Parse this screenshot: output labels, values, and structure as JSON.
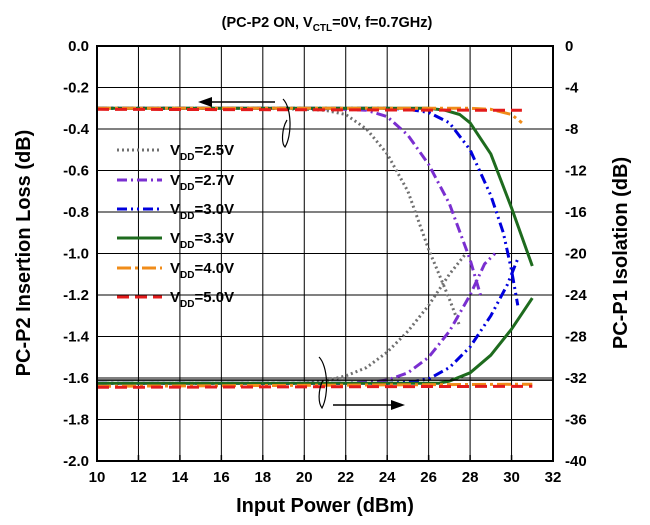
{
  "chart_data": {
    "type": "line",
    "title": {
      "open": "(PC-P2 ON, V",
      "sub": "CTL",
      "close": "=0V, f=0.7GHz)"
    },
    "xlabel": "Input Power  (dBm)",
    "ylabel_left": "PC-P2 Insertion Loss  (dB)",
    "ylabel_right": "PC-P1 Isolation  (dB)",
    "xlim": [
      10,
      32
    ],
    "ylim_left": [
      -2.0,
      0.0
    ],
    "ylim_right": [
      -40,
      0
    ],
    "x_ticks": [
      "10",
      "12",
      "14",
      "16",
      "18",
      "20",
      "22",
      "24",
      "26",
      "28",
      "30",
      "32"
    ],
    "y_left_ticks": [
      "0.0",
      "-0.2",
      "-0.4",
      "-0.6",
      "-0.8",
      "-1.0",
      "-1.2",
      "-1.4",
      "-1.6",
      "-1.8",
      "-2.0"
    ],
    "y_right_ticks": [
      "0",
      "-4",
      "-8",
      "-12",
      "-16",
      "-20",
      "-24",
      "-28",
      "-32",
      "-36",
      "-40"
    ],
    "grid": true,
    "legend_position": "left",
    "series": [
      {
        "name": "V_DD=2.5V",
        "label_main": "V",
        "label_sub": "DD",
        "label_value": "=2.5V",
        "color": "#707070",
        "dash": "2,3",
        "width": 3,
        "insertion_loss": [
          [
            10,
            -0.3
          ],
          [
            18,
            -0.3
          ],
          [
            20,
            -0.305
          ],
          [
            21,
            -0.31
          ],
          [
            22,
            -0.33
          ],
          [
            23,
            -0.4
          ],
          [
            24,
            -0.52
          ],
          [
            25,
            -0.7
          ],
          [
            26,
            -0.98
          ],
          [
            27,
            -1.22
          ],
          [
            27.5,
            -1.35
          ]
        ],
        "isolation": [
          [
            10,
            -32.5
          ],
          [
            20,
            -32.5
          ],
          [
            21,
            -32.3
          ],
          [
            22,
            -31.8
          ],
          [
            23,
            -31
          ],
          [
            24,
            -29.5
          ],
          [
            25,
            -27.5
          ],
          [
            26,
            -25
          ],
          [
            27,
            -22
          ],
          [
            27.8,
            -20
          ]
        ]
      },
      {
        "name": "V_DD=2.7V",
        "label_main": "V",
        "label_sub": "DD",
        "label_value": "=2.7V",
        "color": "#7a2fd0",
        "dash": "10,4,2,4",
        "width": 3,
        "insertion_loss": [
          [
            10,
            -0.3
          ],
          [
            20,
            -0.3
          ],
          [
            22,
            -0.305
          ],
          [
            23,
            -0.31
          ],
          [
            24,
            -0.34
          ],
          [
            25,
            -0.43
          ],
          [
            26,
            -0.57
          ],
          [
            27,
            -0.76
          ],
          [
            28,
            -1.03
          ],
          [
            28.5,
            -1.2
          ]
        ],
        "isolation": [
          [
            10,
            -32.5
          ],
          [
            22,
            -32.5
          ],
          [
            23,
            -32.4
          ],
          [
            24,
            -32.2
          ],
          [
            25,
            -31.5
          ],
          [
            26,
            -30
          ],
          [
            27,
            -27.5
          ],
          [
            28,
            -24
          ],
          [
            28.7,
            -21
          ],
          [
            29.2,
            -20
          ]
        ]
      },
      {
        "name": "V_DD=3.0V",
        "label_main": "V",
        "label_sub": "DD",
        "label_value": "=3.0V",
        "color": "#0000dd",
        "dash": "10,4,2,4,2,4",
        "width": 3,
        "insertion_loss": [
          [
            10,
            -0.3
          ],
          [
            24,
            -0.3
          ],
          [
            25,
            -0.305
          ],
          [
            26,
            -0.32
          ],
          [
            27,
            -0.37
          ],
          [
            28,
            -0.5
          ],
          [
            29,
            -0.72
          ],
          [
            29.6,
            -0.9
          ],
          [
            30,
            -1.08
          ],
          [
            30.3,
            -1.25
          ]
        ],
        "isolation": [
          [
            10,
            -32.5
          ],
          [
            24,
            -32.5
          ],
          [
            25,
            -32.4
          ],
          [
            26,
            -32.1
          ],
          [
            27,
            -31
          ],
          [
            28,
            -29
          ],
          [
            29,
            -26
          ],
          [
            29.8,
            -23
          ],
          [
            30.3,
            -20.5
          ]
        ]
      },
      {
        "name": "V_DD=3.3V",
        "label_main": "V",
        "label_sub": "DD",
        "label_value": "=3.3V",
        "color": "#1e6b1e",
        "dash": "",
        "width": 3,
        "insertion_loss": [
          [
            10,
            -0.3
          ],
          [
            26,
            -0.3
          ],
          [
            26.8,
            -0.31
          ],
          [
            27.5,
            -0.33
          ],
          [
            28,
            -0.37
          ],
          [
            29,
            -0.52
          ],
          [
            30,
            -0.78
          ],
          [
            30.5,
            -0.92
          ],
          [
            31,
            -1.06
          ]
        ],
        "isolation": [
          [
            10,
            -32.5
          ],
          [
            26.5,
            -32.5
          ],
          [
            27,
            -32.3
          ],
          [
            28,
            -31.5
          ],
          [
            29,
            -29.8
          ],
          [
            30,
            -27.3
          ],
          [
            30.5,
            -25.8
          ],
          [
            31,
            -24.3
          ]
        ]
      },
      {
        "name": "V_DD=4.0V",
        "label_main": "V",
        "label_sub": "DD",
        "label_value": "=4.0V",
        "color": "#f08c1a",
        "dash": "14,4,3,4",
        "width": 3,
        "insertion_loss": [
          [
            10,
            -0.3
          ],
          [
            28,
            -0.3
          ],
          [
            29,
            -0.305
          ],
          [
            30,
            -0.33
          ],
          [
            30.5,
            -0.37
          ]
        ],
        "isolation": [
          [
            10,
            -32.8
          ],
          [
            31,
            -32.6
          ]
        ]
      },
      {
        "name": "V_DD=5.0V",
        "label_main": "V",
        "label_sub": "DD",
        "label_value": "=5.0V",
        "color": "#e31b1b",
        "dash": "12,6",
        "width": 3,
        "insertion_loss": [
          [
            10,
            -0.305
          ],
          [
            30.5,
            -0.31
          ]
        ],
        "isolation": [
          [
            10,
            -32.9
          ],
          [
            31,
            -32.8
          ]
        ]
      }
    ]
  }
}
